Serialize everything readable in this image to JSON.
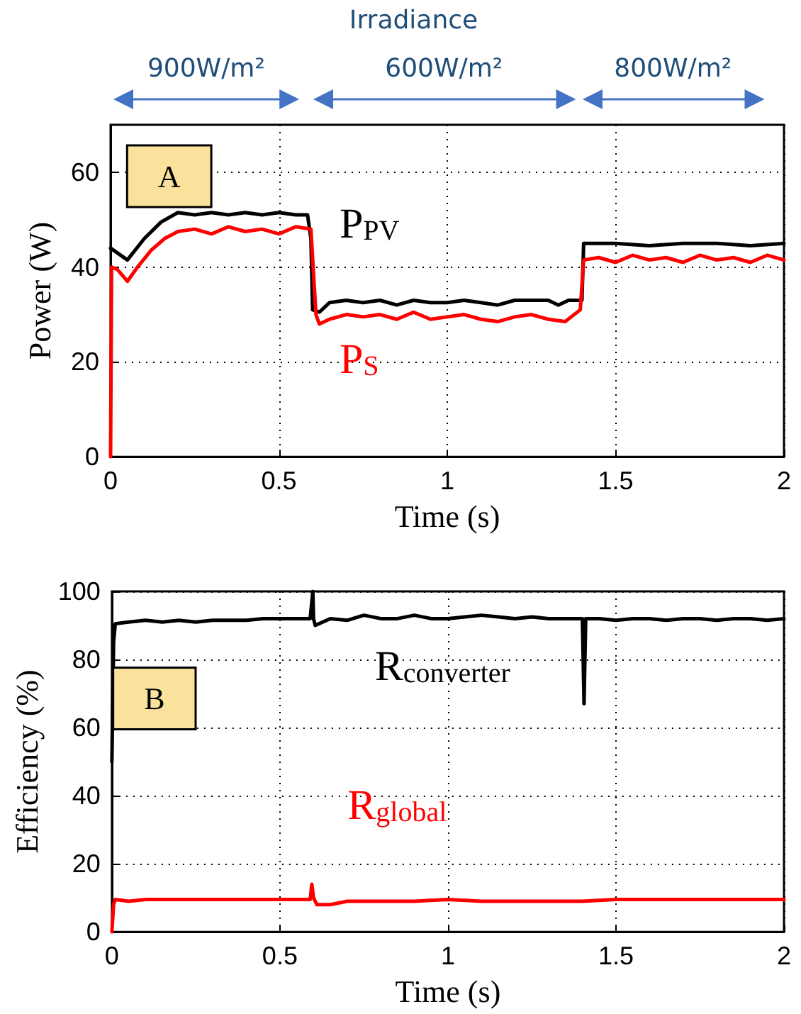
{
  "chart_data": [
    {
      "type": "line",
      "xlabel": "Time (s)",
      "ylabel": "Power (W)",
      "xlim": [
        0,
        2
      ],
      "xticks": [
        0,
        0.5,
        1,
        1.5,
        2
      ],
      "ylim": [
        0,
        70
      ],
      "yticks": [
        0,
        20,
        40,
        60
      ],
      "grid": true,
      "annotations": [
        "Irradiance",
        "900W/m²",
        "600W/m²",
        "800W/m²",
        "A"
      ],
      "series": [
        {
          "name": "P$_{PV}$",
          "color": "#000000",
          "x": [
            0,
            0.02,
            0.05,
            0.1,
            0.15,
            0.2,
            0.25,
            0.3,
            0.35,
            0.4,
            0.45,
            0.5,
            0.55,
            0.585,
            0.595,
            0.6,
            0.62,
            0.65,
            0.7,
            0.75,
            0.8,
            0.85,
            0.9,
            0.95,
            1.0,
            1.05,
            1.1,
            1.15,
            1.2,
            1.25,
            1.3,
            1.33,
            1.36,
            1.4,
            1.405,
            1.45,
            1.5,
            1.6,
            1.7,
            1.8,
            1.9,
            2.0
          ],
          "values": [
            44,
            43,
            41.5,
            46,
            49.5,
            51.5,
            51,
            51.5,
            51,
            51.5,
            51,
            51.5,
            51,
            51,
            46,
            31,
            30.5,
            32.5,
            33,
            32.5,
            33,
            32,
            33,
            32.5,
            32.5,
            33,
            32.5,
            32,
            33,
            33,
            33,
            32,
            33,
            33,
            45,
            45,
            45,
            44.5,
            45,
            45,
            44.5,
            45
          ]
        },
        {
          "name": "P$_{S}$",
          "color": "#ff0000",
          "x": [
            0,
            0.003,
            0.02,
            0.05,
            0.08,
            0.12,
            0.16,
            0.2,
            0.25,
            0.3,
            0.35,
            0.4,
            0.45,
            0.5,
            0.55,
            0.595,
            0.61,
            0.62,
            0.65,
            0.7,
            0.75,
            0.8,
            0.85,
            0.9,
            0.95,
            1.0,
            1.05,
            1.1,
            1.15,
            1.2,
            1.25,
            1.3,
            1.35,
            1.395,
            1.405,
            1.45,
            1.5,
            1.55,
            1.6,
            1.65,
            1.7,
            1.75,
            1.8,
            1.85,
            1.9,
            1.95,
            2.0
          ],
          "values": [
            0,
            40,
            39.5,
            37,
            40,
            43.5,
            46,
            47.5,
            48,
            47,
            48.5,
            47.5,
            48,
            47,
            48.5,
            48,
            30,
            28,
            29,
            30,
            29.5,
            30,
            29,
            30.5,
            29,
            29.5,
            30,
            29,
            28.5,
            29.5,
            30,
            29,
            28.5,
            31,
            41.5,
            42,
            41,
            42.5,
            41.5,
            42,
            41,
            42.5,
            41.5,
            42,
            41,
            42.5,
            41.5
          ]
        }
      ]
    },
    {
      "type": "line",
      "xlabel": "Time (s)",
      "ylabel": "Efficiency (%)",
      "xlim": [
        0,
        2
      ],
      "xticks": [
        0,
        0.5,
        1,
        1.5,
        2
      ],
      "ylim": [
        0,
        100
      ],
      "yticks": [
        0,
        20,
        40,
        60,
        80,
        100
      ],
      "grid": true,
      "annotations": [
        "B"
      ],
      "series": [
        {
          "name": "R$_{converter}$",
          "color": "#000000",
          "x": [
            0,
            0.005,
            0.01,
            0.05,
            0.1,
            0.15,
            0.2,
            0.25,
            0.3,
            0.35,
            0.4,
            0.45,
            0.5,
            0.55,
            0.59,
            0.598,
            0.6,
            0.605,
            0.65,
            0.7,
            0.75,
            0.8,
            0.85,
            0.9,
            0.95,
            1.0,
            1.05,
            1.1,
            1.15,
            1.2,
            1.25,
            1.3,
            1.35,
            1.4,
            1.405,
            1.41,
            1.45,
            1.5,
            1.55,
            1.6,
            1.65,
            1.7,
            1.75,
            1.8,
            1.85,
            1.9,
            1.95,
            2.0
          ],
          "values": [
            50,
            85,
            90.5,
            91,
            91.5,
            91,
            91.5,
            91,
            91.5,
            91.5,
            91.5,
            92,
            92,
            92,
            92,
            100,
            92,
            90,
            92,
            91.5,
            93,
            92,
            92,
            93,
            92,
            92,
            92.5,
            93,
            92.5,
            92,
            92.5,
            92,
            92,
            92,
            67,
            92,
            92,
            91.5,
            92,
            92,
            91.5,
            92,
            92,
            91.5,
            92,
            92,
            91.5,
            92
          ]
        },
        {
          "name": "R$_{global}$",
          "color": "#ff0000",
          "x": [
            0,
            0.005,
            0.01,
            0.05,
            0.1,
            0.2,
            0.3,
            0.4,
            0.5,
            0.59,
            0.595,
            0.6,
            0.61,
            0.65,
            0.7,
            0.8,
            0.9,
            1.0,
            1.1,
            1.2,
            1.3,
            1.4,
            1.5,
            1.6,
            1.7,
            1.8,
            1.9,
            2.0
          ],
          "values": [
            0,
            8,
            9.5,
            9,
            9.5,
            9.5,
            9.5,
            9.5,
            9.5,
            9.5,
            14,
            10,
            8,
            8,
            9,
            9,
            9,
            9.5,
            9,
            9,
            9,
            9,
            9.5,
            9.5,
            9.5,
            9.5,
            9.5,
            9.5
          ]
        }
      ]
    }
  ]
}
